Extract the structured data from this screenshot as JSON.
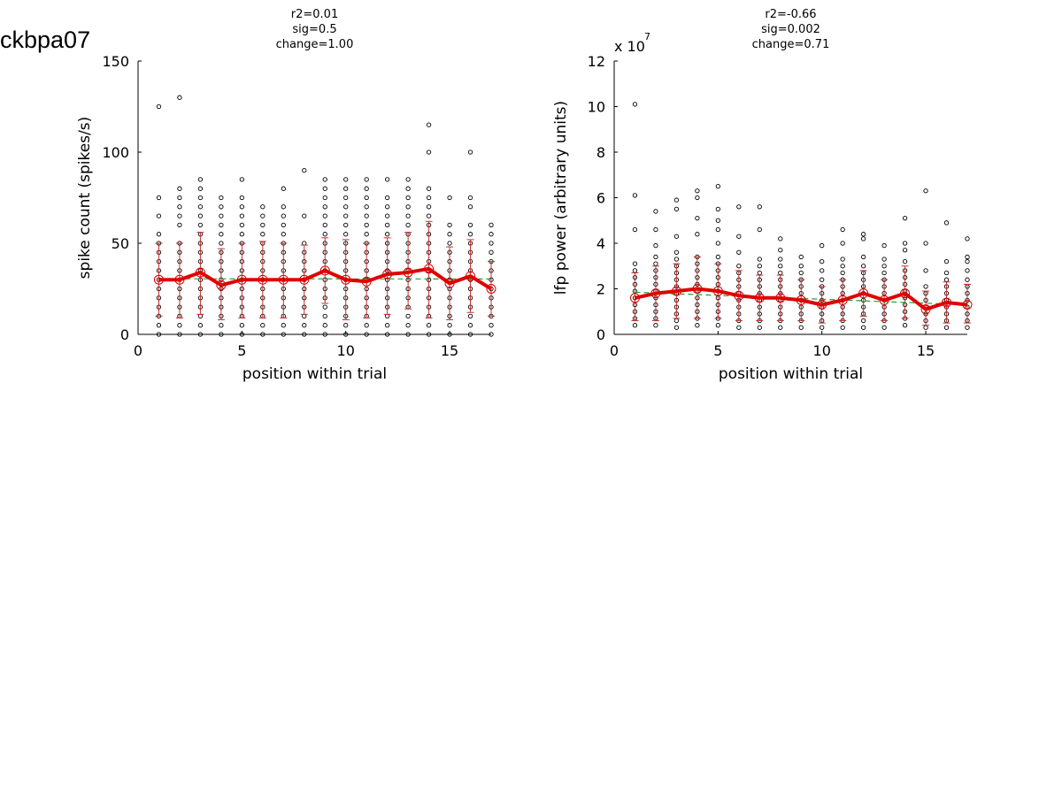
{
  "page": {
    "title": "ckbpa07"
  },
  "colors": {
    "mean_line": "#e00000",
    "fit_line": "#2ca02c",
    "points": "#000000",
    "error_bars": "#c03030"
  },
  "chart_data": [
    {
      "type": "scatter",
      "title_lines": [
        "r2=0.01",
        "sig=0.5",
        "change=1.00"
      ],
      "xlabel": "position within trial",
      "ylabel": "spike count (spikes/s)",
      "exponent_label": "",
      "xlim": [
        0,
        17
      ],
      "ylim": [
        0,
        150
      ],
      "xticks": [
        0,
        5,
        10,
        15
      ],
      "yticks": [
        0,
        50,
        100,
        150
      ],
      "grid": false,
      "mean": [
        30,
        30,
        34,
        27,
        30,
        30,
        30,
        30,
        35,
        30,
        29,
        33,
        34,
        36,
        28,
        32,
        25
      ],
      "err_low": [
        10,
        9,
        11,
        8,
        9,
        9,
        9,
        11,
        17,
        8,
        9,
        11,
        14,
        9,
        8,
        12,
        10
      ],
      "err_high": [
        50,
        50,
        56,
        47,
        50,
        51,
        50,
        49,
        53,
        52,
        50,
        53,
        56,
        62,
        48,
        52,
        40
      ],
      "fit": [
        30.5,
        30.4
      ],
      "points": [
        [
          0,
          5,
          10,
          15,
          20,
          25,
          30,
          35,
          40,
          45,
          50,
          55,
          65,
          75,
          125
        ],
        [
          0,
          5,
          10,
          15,
          20,
          25,
          30,
          35,
          40,
          45,
          50,
          60,
          65,
          70,
          75,
          80,
          130
        ],
        [
          0,
          5,
          10,
          15,
          20,
          25,
          30,
          35,
          40,
          45,
          50,
          55,
          60,
          65,
          70,
          75,
          80,
          85
        ],
        [
          0,
          5,
          10,
          15,
          20,
          25,
          30,
          35,
          40,
          45,
          50,
          55,
          60,
          65,
          70,
          75
        ],
        [
          0,
          5,
          10,
          15,
          20,
          25,
          30,
          35,
          40,
          45,
          50,
          55,
          60,
          65,
          70,
          75,
          85
        ],
        [
          0,
          5,
          10,
          15,
          20,
          25,
          30,
          35,
          40,
          45,
          50,
          55,
          60,
          65,
          70
        ],
        [
          0,
          5,
          10,
          15,
          20,
          25,
          30,
          35,
          40,
          45,
          50,
          55,
          60,
          65,
          70,
          80
        ],
        [
          0,
          5,
          10,
          15,
          20,
          25,
          30,
          35,
          40,
          45,
          50,
          65,
          90
        ],
        [
          0,
          5,
          10,
          15,
          20,
          25,
          30,
          35,
          40,
          45,
          50,
          55,
          60,
          65,
          70,
          75,
          80,
          85
        ],
        [
          0,
          5,
          10,
          15,
          20,
          25,
          30,
          35,
          40,
          45,
          50,
          55,
          60,
          65,
          70,
          75,
          80,
          85
        ],
        [
          0,
          5,
          10,
          15,
          20,
          25,
          30,
          35,
          40,
          45,
          50,
          55,
          60,
          65,
          70,
          75,
          80,
          85
        ],
        [
          0,
          5,
          10,
          15,
          20,
          25,
          30,
          35,
          40,
          45,
          50,
          55,
          60,
          65,
          70,
          75,
          85
        ],
        [
          0,
          5,
          10,
          15,
          20,
          25,
          30,
          35,
          40,
          45,
          50,
          55,
          60,
          65,
          70,
          75,
          80,
          85
        ],
        [
          0,
          5,
          10,
          15,
          20,
          25,
          30,
          35,
          40,
          45,
          50,
          55,
          60,
          65,
          70,
          75,
          80,
          100,
          115
        ],
        [
          0,
          5,
          10,
          15,
          20,
          25,
          30,
          35,
          40,
          45,
          50,
          55,
          60,
          75
        ],
        [
          0,
          5,
          10,
          15,
          20,
          25,
          30,
          35,
          40,
          45,
          50,
          55,
          60,
          70,
          75,
          100
        ],
        [
          0,
          5,
          10,
          15,
          20,
          25,
          30,
          35,
          40,
          45,
          50,
          55,
          60
        ]
      ]
    },
    {
      "type": "scatter",
      "title_lines": [
        "r2=-0.66",
        "sig=0.002",
        "change=0.71"
      ],
      "xlabel": "position within trial",
      "ylabel": "lfp power (arbitrary units)",
      "exponent_label": "x 10",
      "exponent_power": "7",
      "xlim": [
        0,
        17
      ],
      "ylim": [
        0,
        12
      ],
      "xticks": [
        0,
        5,
        10,
        15
      ],
      "yticks": [
        0,
        2,
        4,
        6,
        8,
        10,
        12
      ],
      "grid": false,
      "mean": [
        1.6,
        1.8,
        1.9,
        2.0,
        1.9,
        1.7,
        1.6,
        1.6,
        1.5,
        1.3,
        1.5,
        1.8,
        1.5,
        1.8,
        1.1,
        1.4,
        1.3
      ],
      "err_low": [
        0.6,
        0.6,
        0.7,
        0.7,
        0.7,
        0.6,
        0.6,
        0.6,
        0.6,
        0.5,
        0.6,
        0.8,
        0.6,
        0.7,
        0.4,
        0.5,
        0.5
      ],
      "err_high": [
        2.7,
        3.0,
        3.1,
        3.4,
        3.1,
        2.8,
        2.6,
        2.6,
        2.4,
        2.1,
        2.4,
        2.8,
        2.4,
        3.0,
        1.9,
        2.3,
        2.2
      ],
      "fit": [
        1.85,
        1.3
      ],
      "points": [
        [
          0.4,
          0.7,
          1.0,
          1.3,
          1.6,
          1.9,
          2.2,
          2.5,
          2.8,
          3.1,
          4.6,
          6.1,
          10.1
        ],
        [
          0.4,
          0.7,
          1.0,
          1.3,
          1.6,
          1.9,
          2.2,
          2.5,
          2.8,
          3.1,
          3.4,
          3.9,
          4.6,
          5.4
        ],
        [
          0.3,
          0.6,
          0.9,
          1.2,
          1.5,
          1.8,
          2.1,
          2.4,
          2.7,
          3.0,
          3.3,
          3.6,
          4.3,
          5.5,
          5.9
        ],
        [
          0.4,
          0.7,
          1.0,
          1.3,
          1.6,
          1.9,
          2.2,
          2.5,
          2.8,
          3.1,
          3.4,
          4.4,
          5.1,
          6.0,
          6.3
        ],
        [
          0.4,
          0.7,
          1.0,
          1.3,
          1.6,
          1.9,
          2.2,
          2.5,
          2.8,
          3.1,
          3.4,
          4.0,
          4.6,
          5.0,
          5.5,
          6.5
        ],
        [
          0.3,
          0.6,
          0.9,
          1.2,
          1.5,
          1.8,
          2.1,
          2.4,
          2.7,
          3.0,
          3.6,
          4.3,
          5.6
        ],
        [
          0.3,
          0.6,
          0.9,
          1.2,
          1.5,
          1.8,
          2.1,
          2.4,
          2.7,
          3.0,
          3.3,
          4.6,
          5.6
        ],
        [
          0.3,
          0.6,
          0.9,
          1.2,
          1.5,
          1.8,
          2.1,
          2.4,
          2.7,
          3.0,
          3.3,
          3.7,
          4.2
        ],
        [
          0.3,
          0.6,
          0.9,
          1.2,
          1.5,
          1.8,
          2.1,
          2.4,
          2.7,
          3.0,
          3.4
        ],
        [
          0.3,
          0.6,
          0.9,
          1.2,
          1.5,
          1.8,
          2.1,
          2.4,
          2.8,
          3.2,
          3.9
        ],
        [
          0.3,
          0.6,
          0.9,
          1.2,
          1.5,
          1.8,
          2.1,
          2.4,
          2.7,
          3.0,
          3.3,
          4.0,
          4.6
        ],
        [
          0.3,
          0.6,
          0.9,
          1.2,
          1.5,
          1.8,
          2.1,
          2.4,
          2.7,
          3.0,
          3.4,
          4.2,
          4.4
        ],
        [
          0.3,
          0.6,
          0.9,
          1.2,
          1.5,
          1.8,
          2.1,
          2.4,
          2.7,
          3.0,
          3.3,
          3.9
        ],
        [
          0.4,
          0.7,
          1.0,
          1.3,
          1.6,
          1.9,
          2.2,
          2.5,
          2.8,
          3.2,
          3.7,
          4.0,
          5.1
        ],
        [
          0.3,
          0.6,
          0.9,
          1.2,
          1.5,
          1.8,
          2.1,
          2.8,
          4.0,
          6.3
        ],
        [
          0.3,
          0.6,
          0.9,
          1.2,
          1.5,
          1.8,
          2.1,
          2.4,
          2.7,
          3.2,
          4.9
        ],
        [
          0.3,
          0.6,
          0.9,
          1.2,
          1.5,
          1.8,
          2.1,
          2.4,
          2.8,
          3.2,
          3.4,
          4.2
        ]
      ]
    }
  ]
}
